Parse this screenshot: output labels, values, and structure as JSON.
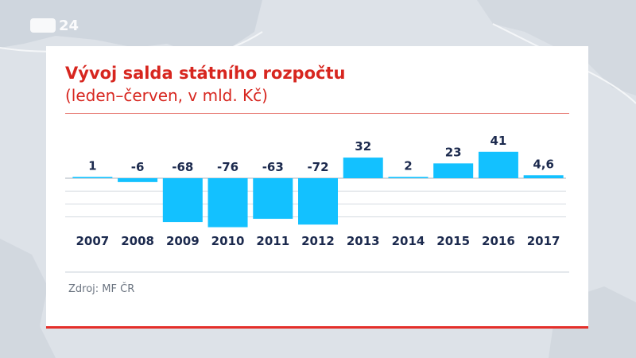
{
  "logo": {
    "text": "24"
  },
  "chart_data": {
    "type": "bar",
    "title": "Vývoj salda státního rozpočtu",
    "subtitle": "(leden–červen, v mld. Kč)",
    "categories": [
      "2007",
      "2008",
      "2009",
      "2010",
      "2011",
      "2012",
      "2013",
      "2014",
      "2015",
      "2016",
      "2017"
    ],
    "values": [
      1,
      -6,
      -68,
      -76,
      -63,
      -72,
      32,
      2,
      23,
      41,
      4.6
    ],
    "value_labels": [
      "1",
      "-6",
      "-68",
      "-76",
      "-63",
      "-72",
      "32",
      "2",
      "23",
      "41",
      "4,6"
    ],
    "ylim": [
      -80,
      45
    ],
    "gridlines": [
      -60,
      -40,
      -20,
      0
    ],
    "grid": true,
    "xlabel": "",
    "ylabel": "",
    "bar_color": "#13c1ff",
    "label_color": "#1c2a4e"
  },
  "source": "Zdroj: MF ČR",
  "colors": {
    "accent": "#d7261f",
    "bar": "#13c1ff"
  }
}
